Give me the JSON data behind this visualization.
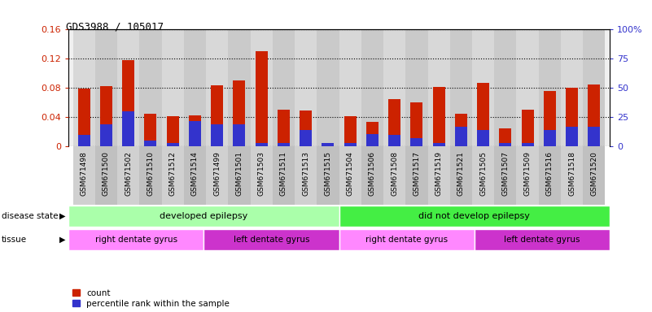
{
  "title": "GDS3988 / 105017",
  "samples": [
    "GSM671498",
    "GSM671500",
    "GSM671502",
    "GSM671510",
    "GSM671512",
    "GSM671514",
    "GSM671499",
    "GSM671501",
    "GSM671503",
    "GSM671511",
    "GSM671513",
    "GSM671515",
    "GSM671504",
    "GSM671506",
    "GSM671508",
    "GSM671517",
    "GSM671519",
    "GSM671521",
    "GSM671505",
    "GSM671507",
    "GSM671509",
    "GSM671516",
    "GSM671518",
    "GSM671520"
  ],
  "count_values": [
    0.079,
    0.083,
    0.118,
    0.045,
    0.042,
    0.043,
    0.084,
    0.09,
    0.13,
    0.05,
    0.049,
    0.001,
    0.042,
    0.034,
    0.065,
    0.06,
    0.082,
    0.045,
    0.087,
    0.025,
    0.05,
    0.076,
    0.08,
    0.085
  ],
  "percentile_pct": [
    10,
    19,
    30,
    5,
    3,
    22,
    19,
    19,
    3,
    3,
    14,
    3,
    3,
    11,
    10,
    7,
    3,
    17,
    14,
    3,
    3,
    14,
    17,
    17
  ],
  "bar_color": "#cc2200",
  "blue_color": "#3333cc",
  "ylim_left": [
    0,
    0.16
  ],
  "ylim_right": [
    0,
    100
  ],
  "yticks_left": [
    0,
    0.04,
    0.08,
    0.12,
    0.16
  ],
  "yticks_right": [
    0,
    25,
    50,
    75,
    100
  ],
  "ytick_labels_left": [
    "0",
    "0.04",
    "0.08",
    "0.12",
    "0.16"
  ],
  "ytick_labels_right": [
    "0",
    "25",
    "50",
    "75",
    "100%"
  ],
  "disease_state_labels": [
    "developed epilepsy",
    "did not develop epilepsy"
  ],
  "disease_state_ranges": [
    [
      0,
      12
    ],
    [
      12,
      24
    ]
  ],
  "disease_state_colors": [
    "#aaffaa",
    "#44ee44"
  ],
  "tissue_labels": [
    "right dentate gyrus",
    "left dentate gyrus",
    "right dentate gyrus",
    "left dentate gyrus"
  ],
  "tissue_ranges": [
    [
      0,
      6
    ],
    [
      6,
      12
    ],
    [
      12,
      18
    ],
    [
      18,
      24
    ]
  ],
  "tissue_color_light": "#ff88ff",
  "tissue_color_dark": "#cc33cc",
  "legend_count_color": "#cc2200",
  "legend_percentile_color": "#3333cc",
  "background_color": "#ffffff",
  "bar_bg_color": "#d8d8d8",
  "bar_width": 0.55
}
